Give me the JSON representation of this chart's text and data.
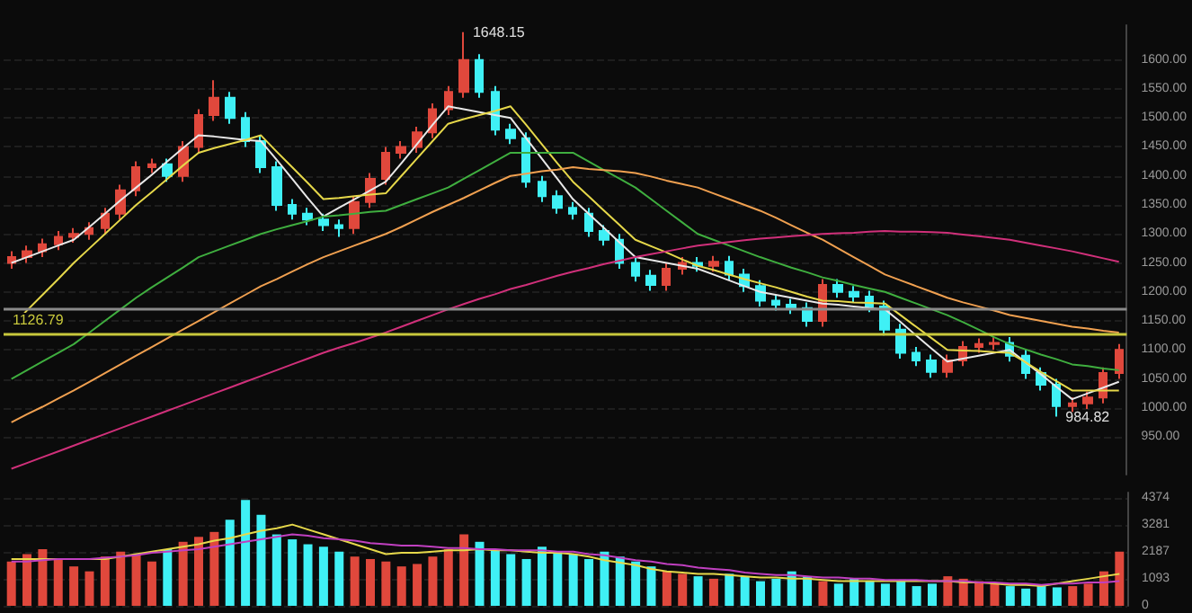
{
  "chart_data": [
    {
      "type": "candlestick",
      "categories": [
        null,
        null,
        null,
        null,
        null,
        null,
        null,
        null,
        null,
        null,
        null,
        null,
        null,
        null,
        null,
        null,
        null,
        null,
        null,
        null,
        null,
        null,
        null,
        null,
        null,
        null,
        null,
        null,
        null,
        null,
        null,
        null,
        null,
        null,
        null,
        null,
        null,
        null,
        null,
        null,
        null,
        null,
        null,
        null,
        null,
        null,
        null,
        null,
        null,
        null,
        null,
        null,
        null,
        null,
        null,
        null,
        null,
        null,
        null,
        null,
        null,
        null,
        null,
        null,
        null,
        null,
        null,
        null,
        null,
        null,
        null,
        null
      ],
      "ohlc": [
        [
          1250,
          1270,
          1240,
          1260
        ],
        [
          1260,
          1280,
          1250,
          1270
        ],
        [
          1270,
          1292,
          1260,
          1282
        ],
        [
          1282,
          1305,
          1272,
          1295
        ],
        [
          1295,
          1310,
          1285,
          1300
        ],
        [
          1300,
          1320,
          1290,
          1310
        ],
        [
          1310,
          1345,
          1300,
          1335
        ],
        [
          1335,
          1385,
          1325,
          1375
        ],
        [
          1375,
          1425,
          1365,
          1415
        ],
        [
          1415,
          1430,
          1405,
          1420
        ],
        [
          1420,
          1430,
          1390,
          1400
        ],
        [
          1400,
          1460,
          1390,
          1450
        ],
        [
          1450,
          1515,
          1440,
          1505
        ],
        [
          1505,
          1565,
          1495,
          1535
        ],
        [
          1535,
          1545,
          1490,
          1500
        ],
        [
          1500,
          1510,
          1450,
          1460
        ],
        [
          1460,
          1470,
          1405,
          1415
        ],
        [
          1415,
          1425,
          1340,
          1350
        ],
        [
          1350,
          1360,
          1325,
          1335
        ],
        [
          1335,
          1345,
          1315,
          1325
        ],
        [
          1325,
          1335,
          1305,
          1315
        ],
        [
          1315,
          1325,
          1295,
          1310
        ],
        [
          1310,
          1365,
          1300,
          1355
        ],
        [
          1355,
          1405,
          1345,
          1395
        ],
        [
          1395,
          1450,
          1385,
          1440
        ],
        [
          1440,
          1460,
          1430,
          1450
        ],
        [
          1450,
          1485,
          1440,
          1475
        ],
        [
          1475,
          1525,
          1465,
          1515
        ],
        [
          1515,
          1555,
          1505,
          1545
        ],
        [
          1545,
          1648.15,
          1535,
          1600
        ],
        [
          1600,
          1610,
          1535,
          1545
        ],
        [
          1545,
          1555,
          1470,
          1480
        ],
        [
          1480,
          1490,
          1455,
          1465
        ],
        [
          1465,
          1475,
          1380,
          1390
        ],
        [
          1390,
          1400,
          1355,
          1365
        ],
        [
          1365,
          1375,
          1335,
          1345
        ],
        [
          1345,
          1355,
          1325,
          1335
        ],
        [
          1335,
          1345,
          1295,
          1305
        ],
        [
          1305,
          1315,
          1280,
          1290
        ],
        [
          1290,
          1300,
          1240,
          1250
        ],
        [
          1250,
          1260,
          1218,
          1228
        ],
        [
          1228,
          1238,
          1202,
          1212
        ],
        [
          1212,
          1250,
          1202,
          1240
        ],
        [
          1240,
          1260,
          1230,
          1250
        ],
        [
          1250,
          1260,
          1235,
          1245
        ],
        [
          1245,
          1262,
          1235,
          1252
        ],
        [
          1252,
          1262,
          1220,
          1230
        ],
        [
          1230,
          1240,
          1200,
          1210
        ],
        [
          1210,
          1220,
          1175,
          1185
        ],
        [
          1185,
          1195,
          1168,
          1178
        ],
        [
          1178,
          1188,
          1162,
          1172
        ],
        [
          1172,
          1182,
          1140,
          1150
        ],
        [
          1150,
          1222,
          1140,
          1212
        ],
        [
          1212,
          1222,
          1190,
          1200
        ],
        [
          1200,
          1210,
          1182,
          1192
        ],
        [
          1192,
          1202,
          1165,
          1175
        ],
        [
          1175,
          1185,
          1125,
          1135
        ],
        [
          1135,
          1145,
          1085,
          1095
        ],
        [
          1095,
          1105,
          1072,
          1082
        ],
        [
          1082,
          1092,
          1052,
          1062
        ],
        [
          1062,
          1092,
          1052,
          1082
        ],
        [
          1082,
          1115,
          1072,
          1105
        ],
        [
          1105,
          1120,
          1095,
          1110
        ],
        [
          1110,
          1122,
          1100,
          1112
        ],
        [
          1112,
          1122,
          1080,
          1090
        ],
        [
          1090,
          1100,
          1050,
          1060
        ],
        [
          1060,
          1070,
          1030,
          1040
        ],
        [
          1040,
          1050,
          984.82,
          1003
        ],
        [
          1003,
          1018,
          993,
          1008
        ],
        [
          1008,
          1028,
          998,
          1018
        ],
        [
          1018,
          1070,
          1008,
          1060
        ],
        [
          1060,
          1110,
          1050,
          1100
        ]
      ],
      "colors": [
        "#e0483c",
        "#e0483c",
        "#e0483c",
        "#e0483c",
        "#e0483c",
        "#e0483c",
        "#e0483c",
        "#e0483c",
        "#e0483c",
        "#e0483c",
        "#3ff0f5",
        "#e0483c",
        "#e0483c",
        "#e0483c",
        "#3ff0f5",
        "#3ff0f5",
        "#3ff0f5",
        "#3ff0f5",
        "#3ff0f5",
        "#3ff0f5",
        "#3ff0f5",
        "#3ff0f5",
        "#e0483c",
        "#e0483c",
        "#e0483c",
        "#e0483c",
        "#e0483c",
        "#e0483c",
        "#e0483c",
        "#e0483c",
        "#3ff0f5",
        "#3ff0f5",
        "#3ff0f5",
        "#3ff0f5",
        "#3ff0f5",
        "#3ff0f5",
        "#3ff0f5",
        "#3ff0f5",
        "#3ff0f5",
        "#3ff0f5",
        "#3ff0f5",
        "#3ff0f5",
        "#e0483c",
        "#e0483c",
        "#3ff0f5",
        "#e0483c",
        "#3ff0f5",
        "#3ff0f5",
        "#3ff0f5",
        "#3ff0f5",
        "#3ff0f5",
        "#3ff0f5",
        "#e0483c",
        "#3ff0f5",
        "#3ff0f5",
        "#3ff0f5",
        "#3ff0f5",
        "#3ff0f5",
        "#3ff0f5",
        "#3ff0f5",
        "#e0483c",
        "#e0483c",
        "#e0483c",
        "#e0483c",
        "#3ff0f5",
        "#3ff0f5",
        "#3ff0f5",
        "#3ff0f5",
        "#e0483c",
        "#e0483c",
        "#e0483c",
        "#e0483c"
      ],
      "series": [
        {
          "type": "line",
          "color": "#e8e8e8",
          "values": [
            1250,
            1260,
            1270,
            1280,
            1290,
            1312,
            1335,
            1358,
            1380,
            1402,
            1425,
            1448,
            1470,
            1468,
            1465,
            1462,
            1460,
            1428,
            1395,
            1362,
            1330,
            1345,
            1360,
            1375,
            1390,
            1422,
            1455,
            1488,
            1520,
            1515,
            1510,
            1505,
            1500,
            1465,
            1430,
            1395,
            1360,
            1335,
            1310,
            1285,
            1260,
            1255,
            1250,
            1245,
            1240,
            1230,
            1220,
            1210,
            1200,
            1195,
            1190,
            1185,
            1180,
            1178,
            1175,
            1172,
            1170,
            1148,
            1125,
            1102,
            1080,
            1085,
            1090,
            1095,
            1100,
            1079,
            1058,
            1036,
            1015,
            1025,
            1035,
            1045
          ]
        },
        {
          "type": "line",
          "color": "#e6d84a",
          "values": [
            1140,
            1168,
            1195,
            1222,
            1250,
            1275,
            1300,
            1325,
            1350,
            1372,
            1395,
            1418,
            1440,
            1448,
            1455,
            1462,
            1470,
            1442,
            1415,
            1388,
            1360,
            1362,
            1365,
            1368,
            1370,
            1400,
            1430,
            1460,
            1490,
            1498,
            1505,
            1512,
            1520,
            1488,
            1455,
            1422,
            1390,
            1365,
            1340,
            1315,
            1290,
            1279,
            1268,
            1256,
            1245,
            1238,
            1230,
            1222,
            1215,
            1208,
            1200,
            1192,
            1185,
            1184,
            1182,
            1181,
            1180,
            1160,
            1140,
            1120,
            1100,
            1099,
            1098,
            1096,
            1095,
            1079,
            1062,
            1046,
            1030,
            1030,
            1030,
            1030
          ]
        },
        {
          "type": "line",
          "color": "#3fae3f",
          "values": [
            1050,
            1065,
            1080,
            1095,
            1110,
            1130,
            1150,
            1170,
            1190,
            1208,
            1225,
            1242,
            1260,
            1270,
            1280,
            1290,
            1300,
            1308,
            1315,
            1322,
            1330,
            1332,
            1335,
            1338,
            1340,
            1350,
            1360,
            1370,
            1380,
            1395,
            1410,
            1425,
            1440,
            1440,
            1440,
            1440,
            1440,
            1425,
            1410,
            1395,
            1380,
            1360,
            1340,
            1320,
            1300,
            1290,
            1280,
            1270,
            1260,
            1251,
            1242,
            1234,
            1225,
            1219,
            1212,
            1206,
            1200,
            1190,
            1180,
            1170,
            1160,
            1148,
            1135,
            1122,
            1110,
            1101,
            1092,
            1084,
            1075,
            1072,
            1068,
            1065
          ]
        },
        {
          "type": "line",
          "color": "#f0a050",
          "values": [
            975,
            989,
            1002,
            1016,
            1030,
            1045,
            1060,
            1075,
            1090,
            1105,
            1120,
            1135,
            1150,
            1165,
            1180,
            1195,
            1210,
            1222,
            1235,
            1248,
            1260,
            1270,
            1280,
            1290,
            1300,
            1312,
            1325,
            1338,
            1350,
            1362,
            1375,
            1388,
            1400,
            1404,
            1408,
            1411,
            1415,
            1412,
            1410,
            1408,
            1405,
            1399,
            1392,
            1386,
            1380,
            1370,
            1360,
            1350,
            1340,
            1328,
            1315,
            1302,
            1290,
            1275,
            1260,
            1245,
            1230,
            1220,
            1210,
            1200,
            1190,
            1182,
            1175,
            1168,
            1160,
            1155,
            1150,
            1145,
            1140,
            1137,
            1133,
            1130
          ]
        },
        {
          "type": "line",
          "color": "#d0307a",
          "values": [
            895,
            905,
            915,
            925,
            935,
            945,
            955,
            965,
            975,
            985,
            995,
            1005,
            1015,
            1025,
            1035,
            1045,
            1055,
            1065,
            1075,
            1085,
            1095,
            1104,
            1112,
            1121,
            1130,
            1140,
            1150,
            1160,
            1170,
            1179,
            1188,
            1196,
            1205,
            1212,
            1220,
            1228,
            1235,
            1241,
            1248,
            1254,
            1260,
            1265,
            1270,
            1275,
            1280,
            1283,
            1286,
            1289,
            1292,
            1294,
            1296,
            1298,
            1300,
            1301,
            1302,
            1304,
            1305,
            1304,
            1304,
            1303,
            1302,
            1299,
            1296,
            1293,
            1290,
            1285,
            1280,
            1275,
            1270,
            1264,
            1258,
            1252
          ]
        }
      ],
      "ylim": [
        885,
        1660
      ],
      "yticks": [
        {
          "value": 950,
          "label": "950.00"
        },
        {
          "value": 1000,
          "label": "1000.00"
        },
        {
          "value": 1050,
          "label": "1050.00"
        },
        {
          "value": 1100,
          "label": "1100.00"
        },
        {
          "value": 1150,
          "label": "1150.00"
        },
        {
          "value": 1200,
          "label": "1200.00"
        },
        {
          "value": 1250,
          "label": "1250.00"
        },
        {
          "value": 1300,
          "label": "1300.00"
        },
        {
          "value": 1350,
          "label": "1350.00"
        },
        {
          "value": 1400,
          "label": "1400.00"
        },
        {
          "value": 1450,
          "label": "1450.00"
        },
        {
          "value": 1500,
          "label": "1500.00"
        },
        {
          "value": 1550,
          "label": "1550.00"
        },
        {
          "value": 1600,
          "label": "1600.00"
        }
      ],
      "tick_labels": "y",
      "grid": "y",
      "ref_lines": [
        {
          "axis": "y",
          "value": 1126.79,
          "label": "1126.79",
          "color": "#c8c83c"
        },
        {
          "axis": "y",
          "value": 1172,
          "color": "#8a8a8a"
        }
      ],
      "annotations": [
        "1648.15",
        "984.82"
      ]
    },
    {
      "type": "bar",
      "categories": [
        null,
        null,
        null,
        null,
        null,
        null,
        null,
        null,
        null,
        null,
        null,
        null,
        null,
        null,
        null,
        null,
        null,
        null,
        null,
        null,
        null,
        null,
        null,
        null,
        null,
        null,
        null,
        null,
        null,
        null,
        null,
        null,
        null,
        null,
        null,
        null,
        null,
        null,
        null,
        null,
        null,
        null,
        null,
        null,
        null,
        null,
        null,
        null,
        null,
        null,
        null,
        null,
        null,
        null,
        null,
        null,
        null,
        null,
        null,
        null,
        null,
        null,
        null,
        null,
        null,
        null,
        null,
        null,
        null,
        null,
        null,
        null
      ],
      "values": [
        1800,
        2100,
        2300,
        1900,
        1600,
        1400,
        2000,
        2200,
        2100,
        1800,
        2300,
        2600,
        2800,
        3000,
        3500,
        4300,
        3700,
        2900,
        2700,
        2500,
        2400,
        2200,
        2000,
        1900,
        1800,
        1600,
        1700,
        2000,
        2300,
        2900,
        2600,
        2300,
        2100,
        1900,
        2400,
        2200,
        2100,
        1900,
        2200,
        2000,
        1800,
        1600,
        1400,
        1300,
        1200,
        1100,
        1300,
        1200,
        1000,
        1100,
        1400,
        1200,
        1000,
        900,
        1100,
        1000,
        900,
        1000,
        800,
        900,
        1200,
        1100,
        1000,
        900,
        800,
        700,
        800,
        750,
        800,
        900,
        1400,
        2200
      ],
      "colors": [
        "#e0483c",
        "#e0483c",
        "#e0483c",
        "#e0483c",
        "#e0483c",
        "#e0483c",
        "#e0483c",
        "#e0483c",
        "#e0483c",
        "#e0483c",
        "#3ff0f5",
        "#e0483c",
        "#e0483c",
        "#e0483c",
        "#3ff0f5",
        "#3ff0f5",
        "#3ff0f5",
        "#3ff0f5",
        "#3ff0f5",
        "#3ff0f5",
        "#3ff0f5",
        "#3ff0f5",
        "#e0483c",
        "#e0483c",
        "#e0483c",
        "#e0483c",
        "#e0483c",
        "#e0483c",
        "#e0483c",
        "#e0483c",
        "#3ff0f5",
        "#3ff0f5",
        "#3ff0f5",
        "#3ff0f5",
        "#3ff0f5",
        "#3ff0f5",
        "#3ff0f5",
        "#3ff0f5",
        "#3ff0f5",
        "#3ff0f5",
        "#3ff0f5",
        "#3ff0f5",
        "#e0483c",
        "#e0483c",
        "#3ff0f5",
        "#e0483c",
        "#3ff0f5",
        "#3ff0f5",
        "#3ff0f5",
        "#3ff0f5",
        "#3ff0f5",
        "#3ff0f5",
        "#e0483c",
        "#3ff0f5",
        "#3ff0f5",
        "#3ff0f5",
        "#3ff0f5",
        "#3ff0f5",
        "#3ff0f5",
        "#3ff0f5",
        "#e0483c",
        "#e0483c",
        "#e0483c",
        "#e0483c",
        "#3ff0f5",
        "#3ff0f5",
        "#3ff0f5",
        "#3ff0f5",
        "#e0483c",
        "#e0483c",
        "#e0483c",
        "#e0483c"
      ],
      "series": [
        {
          "type": "line",
          "color": "#e6d84a",
          "values": [
            1900,
            1900,
            1900,
            1900,
            1900,
            1900,
            1900,
            2000,
            2100,
            2200,
            2300,
            2400,
            2500,
            2650,
            2750,
            2900,
            3050,
            3150,
            3300,
            3100,
            2900,
            2700,
            2500,
            2300,
            2100,
            2150,
            2150,
            2200,
            2250,
            2250,
            2300,
            2250,
            2250,
            2200,
            2150,
            2150,
            2100,
            2000,
            1850,
            1750,
            1650,
            1500,
            1400,
            1350,
            1300,
            1300,
            1250,
            1200,
            1150,
            1150,
            1100,
            1100,
            1050,
            1000,
            1000,
            1000,
            1000,
            1000,
            1000,
            1000,
            1000,
            950,
            950,
            900,
            850,
            850,
            800,
            900,
            1000,
            1100,
            1200,
            1300
          ]
        },
        {
          "type": "line",
          "color": "#c040c0",
          "values": [
            1800,
            1800,
            1850,
            1900,
            1900,
            1900,
            1950,
            2000,
            2050,
            2150,
            2200,
            2250,
            2300,
            2400,
            2500,
            2600,
            2700,
            2800,
            2900,
            2850,
            2750,
            2700,
            2650,
            2550,
            2500,
            2450,
            2450,
            2400,
            2350,
            2350,
            2300,
            2300,
            2250,
            2250,
            2250,
            2200,
            2200,
            2100,
            2050,
            1950,
            1850,
            1800,
            1700,
            1650,
            1550,
            1500,
            1450,
            1350,
            1300,
            1250,
            1250,
            1200,
            1150,
            1150,
            1100,
            1100,
            1050,
            1050,
            1050,
            1000,
            1000,
            1000,
            950,
            950,
            900,
            900,
            850,
            900,
            900,
            950,
            950,
            1000
          ]
        }
      ],
      "ylim": [
        0,
        4600
      ],
      "yticks": [
        0,
        1093,
        2187,
        3281,
        4374
      ],
      "tick_labels": "y",
      "grid": "y"
    }
  ]
}
